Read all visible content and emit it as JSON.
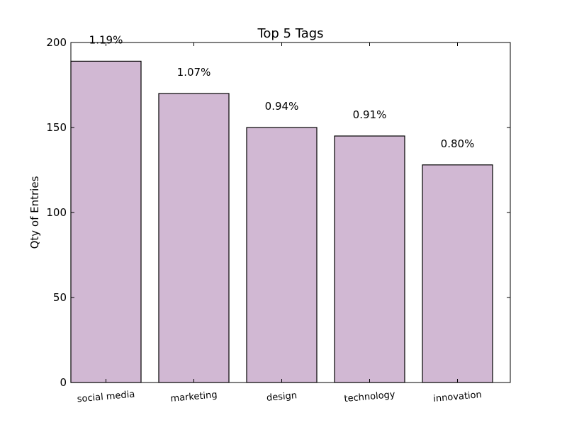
{
  "chart_data": {
    "type": "bar",
    "title": "Top 5 Tags",
    "xlabel": "",
    "ylabel": "Qty of Entries",
    "categories": [
      "social media",
      "marketing",
      "design",
      "technology",
      "innovation"
    ],
    "values": [
      189,
      170,
      150,
      145,
      128
    ],
    "data_labels": [
      "1.19%",
      "1.07%",
      "0.94%",
      "0.91%",
      "0.80%"
    ],
    "ylim": [
      0,
      200
    ],
    "yticks": [
      0,
      50,
      100,
      150,
      200
    ],
    "ytick_labels": [
      "0",
      "50",
      "100",
      "150",
      "200"
    ],
    "bar_color": "#d1b8d3",
    "edge_color": "#000000",
    "grid": false,
    "legend": "none"
  }
}
